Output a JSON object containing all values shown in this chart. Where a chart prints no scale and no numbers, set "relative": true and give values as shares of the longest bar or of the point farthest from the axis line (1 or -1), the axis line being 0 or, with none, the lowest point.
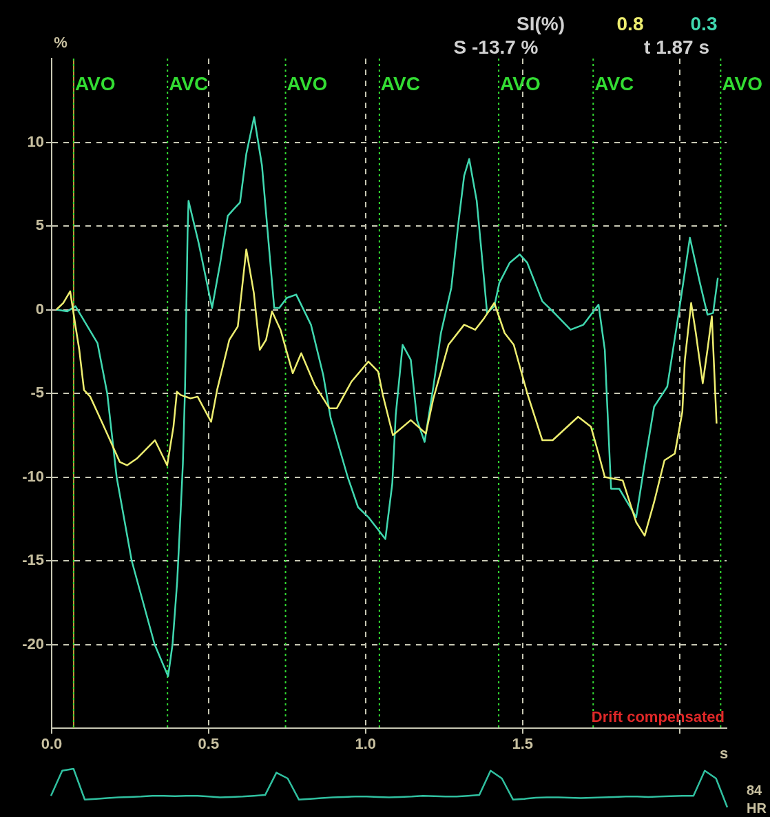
{
  "chart_data": [
    {
      "type": "line",
      "xlabel": "s",
      "ylabel": "%",
      "xlim": [
        0,
        2.15
      ],
      "ylim": [
        -25,
        15
      ],
      "xticks": [
        {
          "value": 0,
          "label": "0.0"
        },
        {
          "value": 0.5,
          "label": "0.5"
        },
        {
          "value": 1,
          "label": "1.0"
        },
        {
          "value": 1.5,
          "label": "1.5"
        },
        {
          "value": 2,
          "label": null
        }
      ],
      "yticks": [
        -20,
        -15,
        -10,
        -5,
        0,
        5,
        10
      ],
      "grid": true,
      "legend": false,
      "marker": "none",
      "line_style": "solid",
      "series": [
        {
          "color": "#eeee70",
          "x": [
            0.015,
            0.037,
            0.059,
            0.076,
            0.088,
            0.103,
            0.123,
            0.162,
            0.186,
            0.217,
            0.24,
            0.271,
            0.329,
            0.368,
            0.388,
            0.399,
            0.411,
            0.442,
            0.465,
            0.508,
            0.527,
            0.566,
            0.593,
            0.62,
            0.644,
            0.663,
            0.683,
            0.702,
            0.729,
            0.768,
            0.795,
            0.838,
            0.885,
            0.908,
            0.955,
            1.009,
            1.04,
            1.055,
            1.087,
            1.144,
            1.192,
            1.216,
            1.264,
            1.314,
            1.349,
            1.378,
            1.41,
            1.443,
            1.472,
            1.515,
            1.563,
            1.596,
            1.677,
            1.718,
            1.742,
            1.762,
            1.819,
            1.862,
            1.889,
            1.919,
            1.952,
            1.985,
            2.009,
            2.017,
            2.037,
            2.052,
            2.074,
            2.089,
            2.103,
            2.118
          ],
          "values": [
            0,
            0.4,
            1.1,
            -1.0,
            -2.4,
            -4.8,
            -5.2,
            -6.8,
            -7.8,
            -9.1,
            -9.3,
            -8.9,
            -7.8,
            -9.3,
            -7.0,
            -4.9,
            -5.1,
            -5.3,
            -5.2,
            -6.7,
            -4.8,
            -1.8,
            -1.0,
            3.6,
            1.0,
            -2.4,
            -1.8,
            -0.1,
            -1.2,
            -3.8,
            -2.6,
            -4.5,
            -5.9,
            -5.9,
            -4.3,
            -3.1,
            -3.7,
            -5.1,
            -7.5,
            -6.6,
            -7.4,
            -5.3,
            -2.1,
            -0.9,
            -1.2,
            -0.5,
            0.4,
            -1.4,
            -2.1,
            -5.0,
            -7.8,
            -7.8,
            -6.4,
            -7.0,
            -8.6,
            -10.0,
            -10.2,
            -12.7,
            -13.5,
            -11.5,
            -9.0,
            -8.6,
            -6.1,
            -3.0,
            0.4,
            -1.4,
            -4.4,
            -2.4,
            -0.4,
            -6.8
          ]
        },
        {
          "color": "#40d8b0",
          "x": [
            0.015,
            0.05,
            0.076,
            0.146,
            0.177,
            0.207,
            0.255,
            0.328,
            0.371,
            0.385,
            0.4,
            0.41,
            0.418,
            0.425,
            0.43,
            0.433,
            0.436,
            0.468,
            0.511,
            0.537,
            0.561,
            0.58,
            0.6,
            0.62,
            0.645,
            0.67,
            0.686,
            0.709,
            0.725,
            0.749,
            0.779,
            0.826,
            0.865,
            0.889,
            0.943,
            0.976,
            1.009,
            1.063,
            1.085,
            1.096,
            1.118,
            1.144,
            1.164,
            1.188,
            1.216,
            1.24,
            1.273,
            1.297,
            1.314,
            1.33,
            1.354,
            1.371,
            1.387,
            1.41,
            1.426,
            1.459,
            1.491,
            1.515,
            1.563,
            1.596,
            1.653,
            1.694,
            1.742,
            1.762,
            1.767,
            1.782,
            1.808,
            1.862,
            1.889,
            1.919,
            1.961,
            2.0,
            2.033,
            2.065,
            2.089,
            2.107,
            2.122
          ],
          "values": [
            0,
            -0.1,
            0.2,
            -2.0,
            -5.0,
            -10.0,
            -15.0,
            -20.0,
            -21.9,
            -20.0,
            -16.2,
            -12.4,
            -9.2,
            -4.6,
            1.2,
            4.6,
            6.5,
            4.0,
            0.1,
            2.8,
            5.6,
            6.0,
            6.4,
            9.3,
            11.5,
            8.6,
            5.1,
            0.1,
            0.1,
            0.7,
            0.9,
            -0.9,
            -3.9,
            -6.5,
            -10.0,
            -11.8,
            -12.4,
            -13.7,
            -10.4,
            -6.3,
            -2.1,
            -3.0,
            -6.6,
            -7.9,
            -4.6,
            -1.4,
            1.3,
            5.4,
            8.0,
            9.0,
            6.5,
            3.1,
            -0.2,
            0.2,
            1.6,
            2.8,
            3.3,
            2.8,
            0.5,
            -0.1,
            -1.2,
            -0.9,
            0.3,
            -2.4,
            -4.6,
            -10.7,
            -10.7,
            -12.4,
            -9.2,
            -5.8,
            -4.6,
            0.1,
            4.3,
            1.6,
            -0.3,
            -0.2,
            1.9
          ]
        }
      ],
      "ref_lines": [
        {
          "axis": "x",
          "value": 0.07,
          "color": "#c8963c",
          "line_style": "solid"
        },
        {
          "axis": "x",
          "value": 0.07,
          "label": "AVO",
          "color": "#33dd33",
          "line_style": "dotted"
        },
        {
          "axis": "x",
          "value": 0.369,
          "label": "AVC",
          "color": "#33dd33",
          "line_style": "dotted"
        },
        {
          "axis": "x",
          "value": 0.745,
          "label": "AVO",
          "color": "#33dd33",
          "line_style": "dotted"
        },
        {
          "axis": "x",
          "value": 1.044,
          "label": "AVC",
          "color": "#33dd33",
          "line_style": "dotted"
        },
        {
          "axis": "x",
          "value": 1.424,
          "label": "AVO",
          "color": "#33dd33",
          "line_style": "dotted"
        },
        {
          "axis": "x",
          "value": 1.725,
          "label": "AVC",
          "color": "#33dd33",
          "line_style": "dotted"
        },
        {
          "axis": "x",
          "value": 2.131,
          "label": "AVO",
          "color": "#33dd33",
          "line_style": "dotted"
        }
      ],
      "annotations": [
        "SI(%)",
        "0.8",
        "0.3",
        "S -13.7 %",
        "t 1.87 s",
        "Drift compensated",
        "84",
        "HR"
      ]
    },
    {
      "type": "line",
      "relative": true,
      "legend": false,
      "grid": false,
      "marker": "none",
      "categories": [
        null,
        null,
        null,
        null,
        null,
        null,
        null,
        null,
        null,
        null,
        null,
        null,
        null,
        null,
        null,
        null,
        null,
        null,
        null,
        null,
        null,
        null,
        null,
        null,
        null,
        null,
        null,
        null,
        null,
        null,
        null,
        null,
        null,
        null,
        null,
        null,
        null,
        null,
        null,
        null,
        null,
        null,
        null,
        null,
        null,
        null,
        null,
        null,
        null,
        null,
        null,
        null,
        null,
        null,
        null,
        null,
        null,
        null,
        null,
        null,
        null
      ],
      "series": [
        {
          "color": "#30c0a0",
          "values": [
            0.3,
            0.95,
            1.0,
            0.2,
            0.22,
            0.24,
            0.26,
            0.27,
            0.28,
            0.3,
            0.3,
            0.29,
            0.3,
            0.3,
            0.28,
            0.26,
            0.27,
            0.28,
            0.3,
            0.32,
            0.9,
            0.75,
            0.2,
            0.22,
            0.24,
            0.26,
            0.27,
            0.28,
            0.28,
            0.27,
            0.26,
            0.27,
            0.28,
            0.3,
            0.29,
            0.28,
            0.28,
            0.3,
            0.32,
            0.95,
            0.75,
            0.2,
            0.22,
            0.25,
            0.26,
            0.26,
            0.25,
            0.24,
            0.25,
            0.26,
            0.27,
            0.28,
            0.28,
            0.27,
            0.28,
            0.29,
            0.3,
            0.3,
            0.95,
            0.75,
            0
          ]
        }
      ]
    }
  ]
}
